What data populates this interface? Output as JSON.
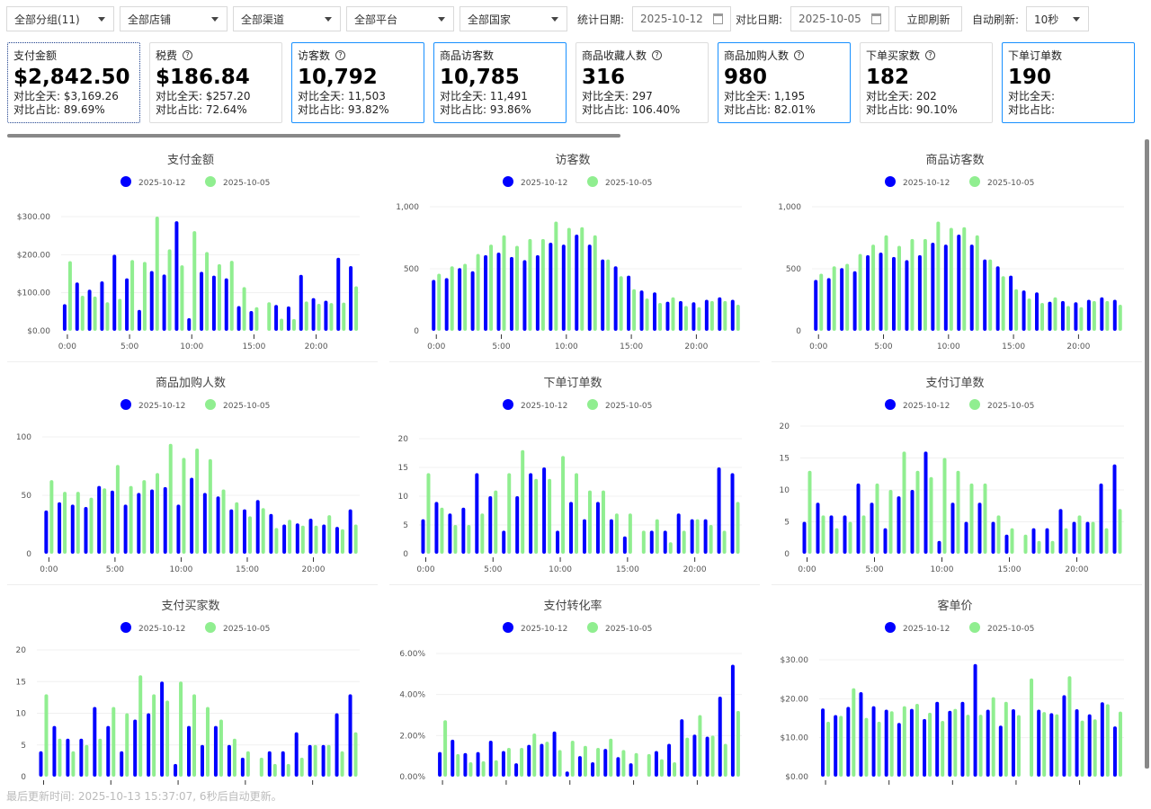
{
  "filters": {
    "group": "全部分组(11)",
    "store": "全部店铺",
    "channel": "全部渠道",
    "platform": "全部平台",
    "country": "全部国家",
    "stat_date_label": "统计日期:",
    "stat_date": "2025-10-12",
    "compare_date_label": "对比日期:",
    "compare_date": "2025-10-05",
    "refresh_button": "立即刷新",
    "auto_refresh_label": "自动刷新:",
    "auto_refresh_value": "10秒"
  },
  "kpis": [
    {
      "title": "支付金额",
      "value": "$2,842.50",
      "compare": "对比全天: $3,169.26",
      "ratio": "对比占比: 89.69%",
      "help": false,
      "style": "focus"
    },
    {
      "title": "税费",
      "value": "$186.84",
      "compare": "对比全天: $257.20",
      "ratio": "对比占比: 72.64%",
      "help": true,
      "style": ""
    },
    {
      "title": "访客数",
      "value": "10,792",
      "compare": "对比全天: 11,503",
      "ratio": "对比占比: 93.82%",
      "help": true,
      "style": "hl"
    },
    {
      "title": "商品访客数",
      "value": "10,785",
      "compare": "对比全天: 11,491",
      "ratio": "对比占比: 93.86%",
      "help": false,
      "style": "hl"
    },
    {
      "title": "商品收藏人数",
      "value": "316",
      "compare": "对比全天: 297",
      "ratio": "对比占比: 106.40%",
      "help": true,
      "style": ""
    },
    {
      "title": "商品加购人数",
      "value": "980",
      "compare": "对比全天: 1,195",
      "ratio": "对比占比: 82.01%",
      "help": true,
      "style": "hl"
    },
    {
      "title": "下单买家数",
      "value": "182",
      "compare": "对比全天: 202",
      "ratio": "对比占比: 90.10%",
      "help": true,
      "style": ""
    },
    {
      "title": "下单订单数",
      "value": "190",
      "compare": "对比全天:",
      "ratio": "对比占比:",
      "help": false,
      "style": "hl"
    }
  ],
  "legend": [
    "2025-10-12",
    "2025-10-05"
  ],
  "colors": {
    "current": "#0000ff",
    "compare": "#90ee90",
    "accent": "#1890ff"
  },
  "footer": "最后更新时间: 2025-10-13 15:37:07, 6秒后自动更新。",
  "chart_data": [
    {
      "type": "bar",
      "title": "支付金额",
      "ylim": [
        0,
        300
      ],
      "yticks": [
        "$0.00",
        "$100.00",
        "$200.00",
        "$300.00"
      ],
      "xticks": [
        "0:00",
        "5:00",
        "10:00",
        "15:00",
        "20:00"
      ],
      "grid": true,
      "legend": "top",
      "series": [
        {
          "name": "2025-10-12",
          "values": [
            70,
            127,
            108,
            130,
            200,
            138,
            55,
            157,
            148,
            288,
            33,
            155,
            145,
            138,
            65,
            52,
            0,
            68,
            64,
            147,
            86,
            79,
            192,
            170
          ]
        },
        {
          "name": "2025-10-05",
          "values": [
            183,
            92,
            90,
            75,
            84,
            186,
            181,
            300,
            214,
            172,
            262,
            207,
            175,
            184,
            115,
            62,
            75,
            32,
            31,
            77,
            71,
            73,
            74,
            117
          ]
        }
      ]
    },
    {
      "type": "bar",
      "title": "访客数",
      "ylim": [
        0,
        1000
      ],
      "yticks": [
        "0",
        "500",
        "1,000"
      ],
      "xticks": [
        "0:00",
        "5:00",
        "10:00",
        "15:00",
        "20:00"
      ],
      "grid": true,
      "legend": "top",
      "series": [
        {
          "name": "2025-10-12",
          "values": [
            410,
            425,
            505,
            480,
            610,
            630,
            595,
            570,
            610,
            710,
            695,
            775,
            695,
            575,
            520,
            445,
            325,
            310,
            235,
            240,
            230,
            250,
            270,
            250
          ]
        },
        {
          "name": "2025-10-05",
          "values": [
            460,
            520,
            540,
            620,
            695,
            770,
            685,
            740,
            740,
            880,
            830,
            835,
            770,
            575,
            440,
            335,
            260,
            225,
            270,
            200,
            190,
            240,
            240,
            210
          ]
        }
      ]
    },
    {
      "type": "bar",
      "title": "商品访客数",
      "ylim": [
        0,
        1000
      ],
      "yticks": [
        "0",
        "500",
        "1,000"
      ],
      "xticks": [
        "0:00",
        "5:00",
        "10:00",
        "15:00",
        "20:00"
      ],
      "grid": true,
      "legend": "top",
      "series": [
        {
          "name": "2025-10-12",
          "values": [
            410,
            425,
            505,
            480,
            610,
            630,
            595,
            570,
            610,
            710,
            695,
            775,
            695,
            575,
            520,
            445,
            325,
            310,
            235,
            240,
            230,
            250,
            270,
            250
          ]
        },
        {
          "name": "2025-10-05",
          "values": [
            460,
            520,
            540,
            620,
            695,
            770,
            685,
            740,
            740,
            880,
            830,
            835,
            770,
            575,
            440,
            335,
            260,
            225,
            270,
            200,
            190,
            240,
            240,
            210
          ]
        }
      ]
    },
    {
      "type": "bar",
      "title": "商品加购人数",
      "ylim": [
        0,
        100
      ],
      "yticks": [
        "0",
        "50",
        "100"
      ],
      "xticks": [
        "0:00",
        "5:00",
        "10:00",
        "15:00",
        "20:00"
      ],
      "grid": true,
      "legend": "top",
      "series": [
        {
          "name": "2025-10-12",
          "values": [
            37,
            44,
            42,
            40,
            58,
            54,
            42,
            52,
            55,
            57,
            42,
            65,
            52,
            49,
            38,
            38,
            46,
            34,
            25,
            26,
            30,
            25,
            23,
            38
          ]
        },
        {
          "name": "2025-10-05",
          "values": [
            63,
            53,
            53,
            48,
            56,
            76,
            58,
            63,
            69,
            94,
            82,
            90,
            81,
            55,
            44,
            32,
            39,
            22,
            29,
            24,
            24,
            33,
            21,
            25
          ]
        }
      ]
    },
    {
      "type": "bar",
      "title": "下单订单数",
      "ylim": [
        0,
        20
      ],
      "yticks": [
        "0",
        "5",
        "10",
        "15",
        "20"
      ],
      "xticks": [
        "0:00",
        "5:00",
        "10:00",
        "15:00",
        "20:00"
      ],
      "grid": true,
      "legend": "top",
      "series": [
        {
          "name": "2025-10-12",
          "values": [
            6,
            9,
            7,
            8,
            14,
            10,
            4,
            10,
            14,
            15,
            4,
            9,
            6,
            9,
            6,
            3,
            0,
            4,
            4,
            7,
            6,
            6,
            15,
            14
          ]
        },
        {
          "name": "2025-10-05",
          "values": [
            14,
            8,
            5,
            5,
            7,
            11,
            14,
            18,
            13,
            13,
            17,
            14,
            11,
            11,
            7,
            7,
            4,
            6,
            2,
            4,
            6,
            5,
            4,
            9
          ]
        }
      ]
    },
    {
      "type": "bar",
      "title": "支付订单数",
      "ylim": [
        0,
        20
      ],
      "yticks": [
        "0",
        "5",
        "10",
        "15",
        "20"
      ],
      "xticks": [
        "0:00",
        "5:00",
        "10:00",
        "15:00",
        "20:00"
      ],
      "grid": true,
      "legend": "top",
      "series": [
        {
          "name": "2025-10-12",
          "values": [
            5,
            8,
            6,
            6,
            11,
            8,
            4,
            9,
            10,
            16,
            2,
            8,
            5,
            8,
            5,
            3,
            0,
            4,
            4,
            7,
            5,
            5,
            11,
            14
          ]
        },
        {
          "name": "2025-10-05",
          "values": [
            13,
            6,
            4,
            5,
            6,
            11,
            10,
            16,
            13,
            12,
            15,
            13,
            11,
            11,
            6,
            4,
            3,
            2,
            2,
            4,
            6,
            5,
            4,
            7
          ]
        }
      ]
    },
    {
      "type": "bar",
      "title": "支付买家数",
      "ylim": [
        0,
        20
      ],
      "yticks": [
        "0",
        "5",
        "10",
        "15",
        "20"
      ],
      "xticks": [
        "0:00",
        "5:00",
        "10:00",
        "15:00",
        "20:00"
      ],
      "grid": true,
      "legend": "top",
      "series": [
        {
          "name": "2025-10-12",
          "values": [
            4,
            8,
            6,
            6,
            11,
            8,
            4,
            9,
            10,
            15,
            2,
            8,
            5,
            8,
            5,
            3,
            0,
            4,
            4,
            7,
            5,
            5,
            10,
            13
          ]
        },
        {
          "name": "2025-10-05",
          "values": [
            13,
            6,
            4,
            5,
            6,
            11,
            10,
            16,
            13,
            12,
            15,
            13,
            11,
            9,
            6,
            4,
            3,
            2,
            2,
            3,
            5,
            5,
            4,
            7
          ]
        }
      ]
    },
    {
      "type": "bar",
      "title": "支付转化率",
      "ylim": [
        0,
        6
      ],
      "yticks": [
        "0.00%",
        "2.00%",
        "4.00%",
        "6.00%"
      ],
      "xticks": [
        "0:00",
        "5:00",
        "10:00",
        "15:00",
        "20:00"
      ],
      "grid": true,
      "legend": "top",
      "series": [
        {
          "name": "2025-10-12",
          "values": [
            1.2,
            1.8,
            1.15,
            1.2,
            1.75,
            1.25,
            0.65,
            1.55,
            1.6,
            2.2,
            0.25,
            1.0,
            0.7,
            1.35,
            0.95,
            0.65,
            0,
            1.25,
            1.6,
            2.8,
            2.05,
            1.95,
            3.9,
            5.45
          ]
        },
        {
          "name": "2025-10-05",
          "values": [
            2.75,
            1.1,
            0.7,
            0.75,
            0.8,
            1.4,
            1.4,
            2.1,
            1.7,
            1.3,
            1.75,
            1.5,
            1.4,
            1.85,
            1.3,
            1.15,
            1.1,
            0.85,
            0.7,
            1.9,
            3.0,
            2.0,
            1.6,
            3.2
          ]
        }
      ]
    },
    {
      "type": "bar",
      "title": "客单价",
      "ylim": [
        0,
        30
      ],
      "yticks": [
        "$0.00",
        "$10.00",
        "$20.00",
        "$30.00"
      ],
      "xticks": [
        "0:00",
        "5:00",
        "10:00",
        "15:00",
        "20:00"
      ],
      "grid": true,
      "legend": "top",
      "series": [
        {
          "name": "2025-10-12",
          "values": [
            17.5,
            15.8,
            17.9,
            21.7,
            18.1,
            17.2,
            13.8,
            17.4,
            14.8,
            19.2,
            16.9,
            19.2,
            28.9,
            17.2,
            13.1,
            17.3,
            0,
            17.2,
            16.3,
            20.9,
            17.3,
            16.0,
            19.1,
            12.9
          ]
        },
        {
          "name": "2025-10-05",
          "values": [
            14.1,
            15.6,
            22.7,
            15.1,
            14.1,
            16.8,
            18.1,
            18.7,
            16.4,
            14.3,
            17.4,
            15.9,
            15.9,
            20.4,
            19.2,
            15.8,
            25.2,
            16.6,
            16.0,
            25.8,
            14.4,
            14.7,
            18.6,
            16.7
          ]
        }
      ]
    }
  ]
}
